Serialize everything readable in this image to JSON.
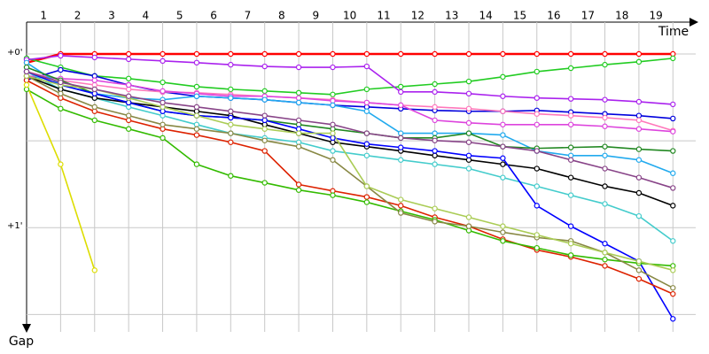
{
  "chart_data": {
    "type": "line",
    "x_label": "Time",
    "y_label": "Gap",
    "x": [
      0,
      1,
      2,
      3,
      4,
      5,
      6,
      7,
      8,
      9,
      10,
      11,
      12,
      13,
      14,
      15,
      16,
      17,
      18,
      19
    ],
    "xlim": [
      0,
      19.8
    ],
    "xticks": [
      {
        "value": 0.5,
        "label": "1"
      },
      {
        "value": 1.5,
        "label": "2"
      },
      {
        "value": 2.5,
        "label": "3"
      },
      {
        "value": 3.5,
        "label": "4"
      },
      {
        "value": 4.5,
        "label": "5"
      },
      {
        "value": 5.5,
        "label": "6"
      },
      {
        "value": 6.5,
        "label": "7"
      },
      {
        "value": 7.5,
        "label": "8"
      },
      {
        "value": 8.5,
        "label": "9"
      },
      {
        "value": 9.5,
        "label": "10"
      },
      {
        "value": 10.5,
        "label": "11"
      },
      {
        "value": 11.5,
        "label": "12"
      },
      {
        "value": 12.5,
        "label": "13"
      },
      {
        "value": 13.5,
        "label": "14"
      },
      {
        "value": 14.5,
        "label": "15"
      },
      {
        "value": 15.5,
        "label": "16"
      },
      {
        "value": 16.5,
        "label": "17"
      },
      {
        "value": 17.5,
        "label": "18"
      },
      {
        "value": 18.5,
        "label": "19"
      }
    ],
    "ylim": [
      -11,
      96
    ],
    "y_inverted": true,
    "yticks": [
      {
        "value": 0,
        "label": "+0'"
      },
      {
        "value": 60,
        "label": "+1'"
      }
    ],
    "minor_yticks": [
      30,
      90
    ],
    "grid": true,
    "series": [
      {
        "color": "#ff0000",
        "values": [
          3,
          0,
          0,
          0,
          0,
          0,
          0,
          0,
          0,
          0,
          0,
          0,
          0,
          0,
          0,
          0,
          0,
          0,
          0,
          0
        ]
      },
      {
        "color": "#22cc22",
        "values": [
          1.5,
          4.6,
          7.6,
          8.5,
          9.8,
          11.3,
          12.2,
          12.8,
          13.4,
          14,
          12.2,
          11.3,
          10.4,
          9.5,
          7.9,
          6.1,
          4.9,
          3.7,
          2.7,
          1.5
        ]
      },
      {
        "color": "#aa22ee",
        "values": [
          2,
          0.6,
          1.2,
          1.8,
          2.4,
          3,
          3.7,
          4.3,
          4.6,
          4.6,
          4.3,
          13.1,
          13.1,
          13.7,
          14.6,
          15.2,
          15.5,
          15.8,
          16.5,
          17.4
        ]
      },
      {
        "color": "#0000dd",
        "values": [
          9,
          5.5,
          7.6,
          10.7,
          13.1,
          14.6,
          15.2,
          15.8,
          16.8,
          17.7,
          18.3,
          18.9,
          19.5,
          19.8,
          19.8,
          19.5,
          20.1,
          20.7,
          21.3,
          22.3
        ]
      },
      {
        "color": "#ff77bb",
        "values": [
          6.1,
          9.1,
          10.7,
          12.2,
          13.1,
          13.4,
          14,
          14.6,
          15.2,
          15.8,
          16.8,
          17.7,
          18.3,
          18.9,
          19.8,
          20.7,
          21.3,
          22,
          22.9,
          26.5
        ]
      },
      {
        "color": "#dd44dd",
        "values": [
          7.6,
          8.5,
          9.1,
          10.7,
          12.8,
          13.7,
          14.6,
          14.6,
          15.2,
          16.2,
          16.8,
          17.7,
          22.9,
          23.8,
          24.4,
          24.4,
          24.4,
          25,
          25.9,
          26.8
        ]
      },
      {
        "color": "#22aaee",
        "values": [
          3,
          10.7,
          13.7,
          15.2,
          15.8,
          14.6,
          15.2,
          15.8,
          16.8,
          17.7,
          19.8,
          27.4,
          27.4,
          27.4,
          28,
          33.5,
          35.1,
          35.1,
          36.6,
          41.2
        ]
      },
      {
        "color": "#228822",
        "values": [
          4.6,
          9.1,
          13.7,
          16.8,
          19.8,
          21.3,
          22,
          22.9,
          24.4,
          25.9,
          27.4,
          29,
          29,
          27.4,
          32,
          32.6,
          32.3,
          32,
          32.9,
          33.5
        ]
      },
      {
        "color": "#44cccc",
        "values": [
          6.1,
          12.2,
          15.2,
          18.3,
          21.3,
          24.4,
          27.4,
          29,
          30.5,
          33.5,
          35.1,
          36.6,
          38.1,
          39.6,
          42.7,
          45.7,
          48.8,
          51.8,
          56,
          64.6
        ]
      },
      {
        "color": "#000000",
        "values": [
          7.6,
          12.2,
          15.2,
          16.8,
          18.3,
          19.8,
          21.3,
          24.4,
          27.4,
          30.5,
          32,
          33.5,
          35.1,
          36.6,
          38.1,
          39.6,
          42.7,
          45.7,
          48,
          52.4
        ]
      },
      {
        "color": "#0000ff",
        "values": [
          6.1,
          10.7,
          13.7,
          16.8,
          19.8,
          21.3,
          22,
          22.9,
          25.9,
          29,
          31.1,
          32.3,
          33.5,
          35.1,
          36,
          52.4,
          59.5,
          65.5,
          71.6,
          91.5
        ]
      },
      {
        "color": "#dd2200",
        "values": [
          9.1,
          15.2,
          19.8,
          22.9,
          25.9,
          28,
          30.5,
          33.5,
          45.1,
          47.3,
          49.4,
          52.4,
          56.4,
          59.5,
          64,
          67.7,
          70.1,
          73.2,
          77.7,
          82.9
        ]
      },
      {
        "color": "#33bb00",
        "values": [
          12.2,
          18.9,
          22.9,
          25.9,
          29,
          38.1,
          42.1,
          44.5,
          47,
          48.8,
          51.2,
          54.3,
          57.3,
          61,
          64.6,
          67,
          69.5,
          71,
          72.3,
          73.2
        ]
      },
      {
        "color": "#888844",
        "values": [
          7.6,
          13.7,
          18.3,
          21.3,
          24.4,
          25.9,
          27.4,
          29.9,
          32,
          36.6,
          45.7,
          54.9,
          57.9,
          59.5,
          61.6,
          63.4,
          64.6,
          68.6,
          74.7,
          80.8
        ]
      },
      {
        "color": "#dddd00",
        "values": [
          10.7,
          38.1,
          74.7,
          null,
          null,
          null,
          null,
          null,
          null,
          null,
          null,
          null,
          null,
          null,
          null,
          null,
          null,
          null,
          null,
          null
        ]
      },
      {
        "color": "#aacc55",
        "values": [
          7.6,
          10.7,
          12.2,
          15.2,
          18.3,
          21.3,
          24.4,
          25.9,
          27.4,
          27.4,
          45.7,
          50.3,
          53.4,
          56.4,
          59.5,
          62.5,
          65.5,
          68.6,
          71.6,
          74.7
        ]
      },
      {
        "color": "#884488",
        "values": [
          6.1,
          9.8,
          12.2,
          14.6,
          16.8,
          18.3,
          19.8,
          21.3,
          22.9,
          24.4,
          27.4,
          29,
          29.9,
          30.5,
          32,
          33.5,
          36.6,
          39.6,
          42.7,
          46.3
        ]
      }
    ]
  }
}
